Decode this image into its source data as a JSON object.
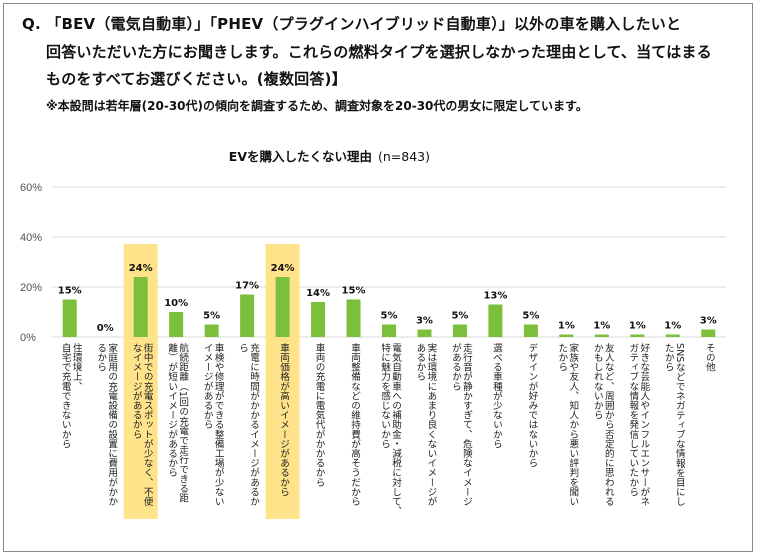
{
  "question": {
    "line1": "Q. 「BEV（電気自動車）」「PHEV（プラグインハイブリッド自動車）」以外の車を購入したいと",
    "line2": "回答いただいた方にお聞きします。これらの燃料タイプを選択しなかった理由として、当てはまる",
    "line3": "ものをすべてお選びください。(複数回答)】",
    "note": "※本設問は若年層(20-30代)の傾向を調査するため、調査対象を20-30代の男女に限定しています。"
  },
  "chart_data": {
    "type": "bar",
    "title": "EVを購入したくない理由",
    "sample": "(n=843)",
    "ylim": [
      0,
      60
    ],
    "yticks": [
      "0%",
      "20%",
      "40%",
      "60%"
    ],
    "grid": true,
    "colors": {
      "bar": "#7bbf3a",
      "highlight": "#ffe38a",
      "grid": "#d9d9d9"
    },
    "highlighted": [
      2,
      6
    ],
    "categories": [
      [
        "住環境上、",
        "自宅で充電できないから"
      ],
      [
        "家庭用の充電設備の設置に費用がかか",
        "るから"
      ],
      [
        "街中での充電スポットが少なく、不便",
        "なイメージがあるから"
      ],
      [
        "航続距離（1回の充電で走行できる距",
        "離）が短いイメージがあるから"
      ],
      [
        "車検や修理ができる整備工場が少ない",
        "イメージがあるから"
      ],
      [
        "充電に時間がかかるイメージがあるか",
        "ら"
      ],
      [
        "車両価格が高いイメージがあるから"
      ],
      [
        "車両の充電に電気代がかかるから"
      ],
      [
        "車両整備などの維持費が高そうだから"
      ],
      [
        "電気自動車への補助金・減税に対して、",
        "特に魅力を感じないから"
      ],
      [
        "実は環境にあまり良くないイメージが",
        "あるから"
      ],
      [
        "走行音が静かすぎて、危険なイメージ",
        "があるから"
      ],
      [
        "選べる車種が少ないから"
      ],
      [
        "デザインが好みではないから"
      ],
      [
        "家族や友人、知人から悪い評判を聞い",
        "たから"
      ],
      [
        "友人など、周囲から否定的に思われる",
        "かもしれないから"
      ],
      [
        "好きな芸能人やインフルエンサーがネ",
        "ガティブな情報を発信していたから"
      ],
      [
        "SNSなどでネガティブな情報を目にし",
        "たから"
      ],
      [
        "その他"
      ]
    ],
    "values": [
      15,
      0,
      24,
      10,
      5,
      17,
      24,
      14,
      15,
      5,
      3,
      5,
      13,
      5,
      1,
      1,
      1,
      1,
      3
    ],
    "value_labels": [
      "15%",
      "0%",
      "24%",
      "10%",
      "5%",
      "17%",
      "24%",
      "14%",
      "15%",
      "5%",
      "3%",
      "5%",
      "13%",
      "5%",
      "1%",
      "1%",
      "1%",
      "1%",
      "3%"
    ]
  }
}
